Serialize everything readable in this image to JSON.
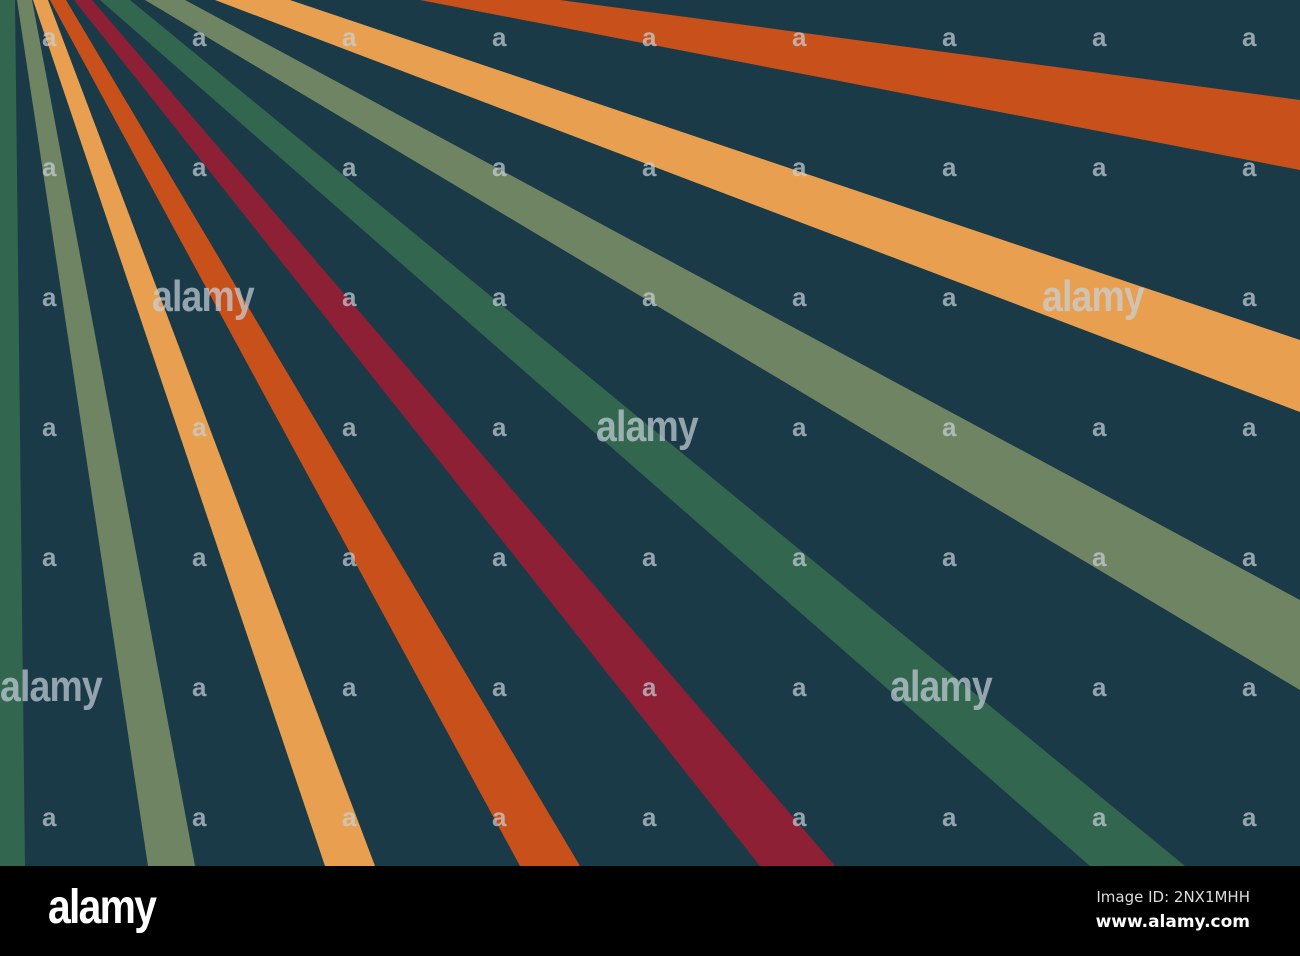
{
  "colors": {
    "background": "#1b3a48",
    "green": "#33664f",
    "sage": "#6f8462",
    "light_orange": "#e8a050",
    "orange": "#c8501a",
    "crimson": "#8e2035"
  },
  "rays": [
    "green",
    "sage",
    "light_orange",
    "orange",
    "crimson",
    "green",
    "sage",
    "light_orange",
    "orange"
  ],
  "watermark": {
    "small": "a",
    "big": "alamy"
  },
  "footer": {
    "logo": "alamy",
    "image_id": "Image ID: 2NX1MHH",
    "site": "www.alamy.com"
  }
}
